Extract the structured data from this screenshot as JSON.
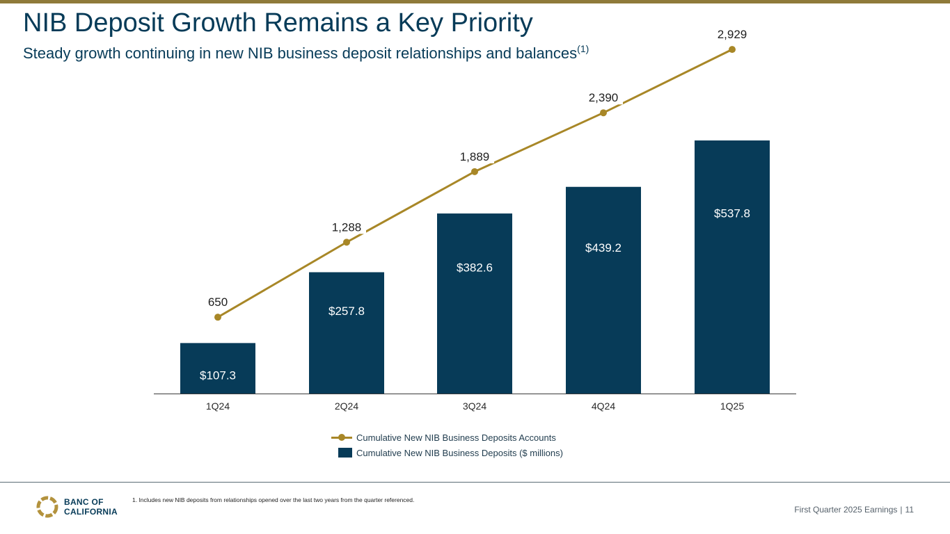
{
  "header": {
    "title": "NIB Deposit Growth Remains a Key Priority",
    "subtitle": "Steady growth continuing in new NIB business deposit relationships and balances",
    "subtitle_sup": "(1)"
  },
  "chart_data": {
    "type": "bar",
    "categories": [
      "1Q24",
      "2Q24",
      "3Q24",
      "4Q24",
      "1Q25"
    ],
    "series": [
      {
        "name": "Cumulative New NIB Business Deposits ($ millions)",
        "kind": "bar",
        "values": [
          107.3,
          257.8,
          382.6,
          439.2,
          537.8
        ],
        "labels": [
          "$107.3",
          "$257.8",
          "$382.6",
          "$439.2",
          "$537.8"
        ]
      },
      {
        "name": "Cumulative New NIB Business Deposits Accounts",
        "kind": "line",
        "values": [
          650,
          1288,
          1889,
          2390,
          2929
        ],
        "labels": [
          "650",
          "1,288",
          "1,889",
          "2,390",
          "2,929"
        ]
      }
    ],
    "bar_axis_range": [
      0,
      537.8
    ],
    "line_axis_range": [
      0,
      3350
    ],
    "colors": {
      "bar": "#073b58",
      "line": "#a88727"
    },
    "legend_position": "bottom-center",
    "grid": false
  },
  "legend": {
    "line_label": "Cumulative New NIB Business Deposits Accounts",
    "bar_label": "Cumulative New NIB Business Deposits ($ millions)"
  },
  "footer": {
    "logo_line1": "BANC OF",
    "logo_line2": "CALIFORNIA",
    "footnote": "1.  Includes new NIB deposits from relationships opened over the last two years from the quarter referenced.",
    "report": "First Quarter 2025 Earnings",
    "separator": "|",
    "page": "11"
  }
}
